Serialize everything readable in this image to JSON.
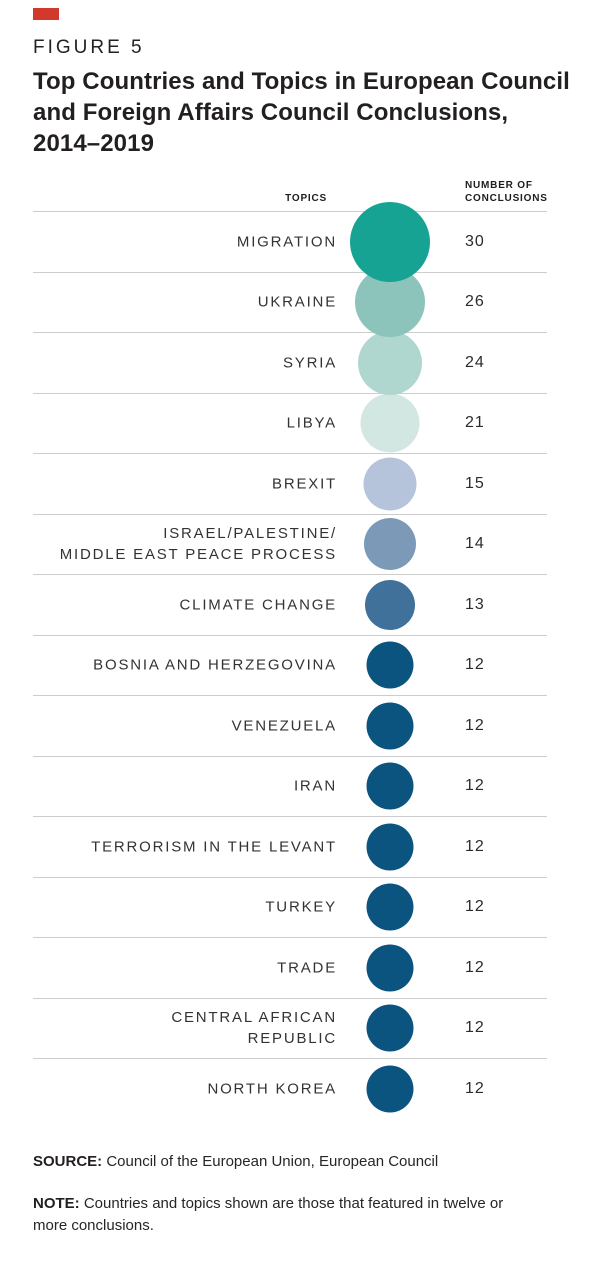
{
  "figure": {
    "label": "FIGURE 5",
    "title_lines": [
      "Top Countries and Topics in European Council",
      "and Foreign Affairs Council Conclusions,",
      "2014–2019"
    ],
    "accent_color": "#d0392c"
  },
  "columns": {
    "topics_header": "TOPICS",
    "number_header": "NUMBER OF\nCONCLUSIONS"
  },
  "chart_data": {
    "type": "bubble",
    "title": "Top Countries and Topics in European Council and Foreign Affairs Council Conclusions, 2014–2019",
    "value_label": "Number of Conclusions",
    "encoding": "bubble size and color encode the number of conclusions per topic",
    "categories": [
      "Migration",
      "Ukraine",
      "Syria",
      "Libya",
      "Brexit",
      "Israel/Palestine/Middle East Peace Process",
      "Climate Change",
      "Bosnia and Herzegovina",
      "Venezuela",
      "Iran",
      "Terrorism in the Levant",
      "Turkey",
      "Trade",
      "Central African Republic",
      "North Korea"
    ],
    "values": [
      30,
      26,
      24,
      21,
      15,
      14,
      13,
      12,
      12,
      12,
      12,
      12,
      12,
      12,
      12
    ],
    "value_range": [
      12,
      30
    ],
    "grid": "horizontal rules between rows",
    "rows": [
      {
        "lines": [
          "MIGRATION"
        ],
        "value": "30",
        "color": "#16a394",
        "diameter": 80
      },
      {
        "lines": [
          "UKRAINE"
        ],
        "value": "26",
        "color": "#8cc4bc",
        "diameter": 70
      },
      {
        "lines": [
          "SYRIA"
        ],
        "value": "24",
        "color": "#afd6cf",
        "diameter": 64
      },
      {
        "lines": [
          "LIBYA"
        ],
        "value": "21",
        "color": "#d3e7e2",
        "diameter": 59
      },
      {
        "lines": [
          "BREXIT"
        ],
        "value": "15",
        "color": "#b5c4da",
        "diameter": 53
      },
      {
        "lines": [
          "ISRAEL/PALESTINE/",
          "MIDDLE EAST PEACE PROCESS"
        ],
        "value": "14",
        "color": "#7c99b8",
        "diameter": 52
      },
      {
        "lines": [
          "CLIMATE CHANGE"
        ],
        "value": "13",
        "color": "#40719b",
        "diameter": 50
      },
      {
        "lines": [
          "BOSNIA AND HERZEGOVINA"
        ],
        "value": "12",
        "color": "#0b5480",
        "diameter": 47
      },
      {
        "lines": [
          "VENEZUELA"
        ],
        "value": "12",
        "color": "#0b5480",
        "diameter": 47
      },
      {
        "lines": [
          "IRAN"
        ],
        "value": "12",
        "color": "#0b5480",
        "diameter": 47
      },
      {
        "lines": [
          "TERRORISM IN THE LEVANT"
        ],
        "value": "12",
        "color": "#0b5480",
        "diameter": 47
      },
      {
        "lines": [
          "TURKEY"
        ],
        "value": "12",
        "color": "#0b5480",
        "diameter": 47
      },
      {
        "lines": [
          "TRADE"
        ],
        "value": "12",
        "color": "#0b5480",
        "diameter": 47
      },
      {
        "lines": [
          "CENTRAL AFRICAN",
          "REPUBLIC"
        ],
        "value": "12",
        "color": "#0b5480",
        "diameter": 47
      },
      {
        "lines": [
          "NORTH KOREA"
        ],
        "value": "12",
        "color": "#0b5480",
        "diameter": 47
      }
    ]
  },
  "footer": {
    "source_label": "SOURCE:",
    "source_text": " Council of the European Union, European Council",
    "note_label": "NOTE:",
    "note_text": " Countries and topics shown are those that featured in twelve or more conclusions."
  }
}
